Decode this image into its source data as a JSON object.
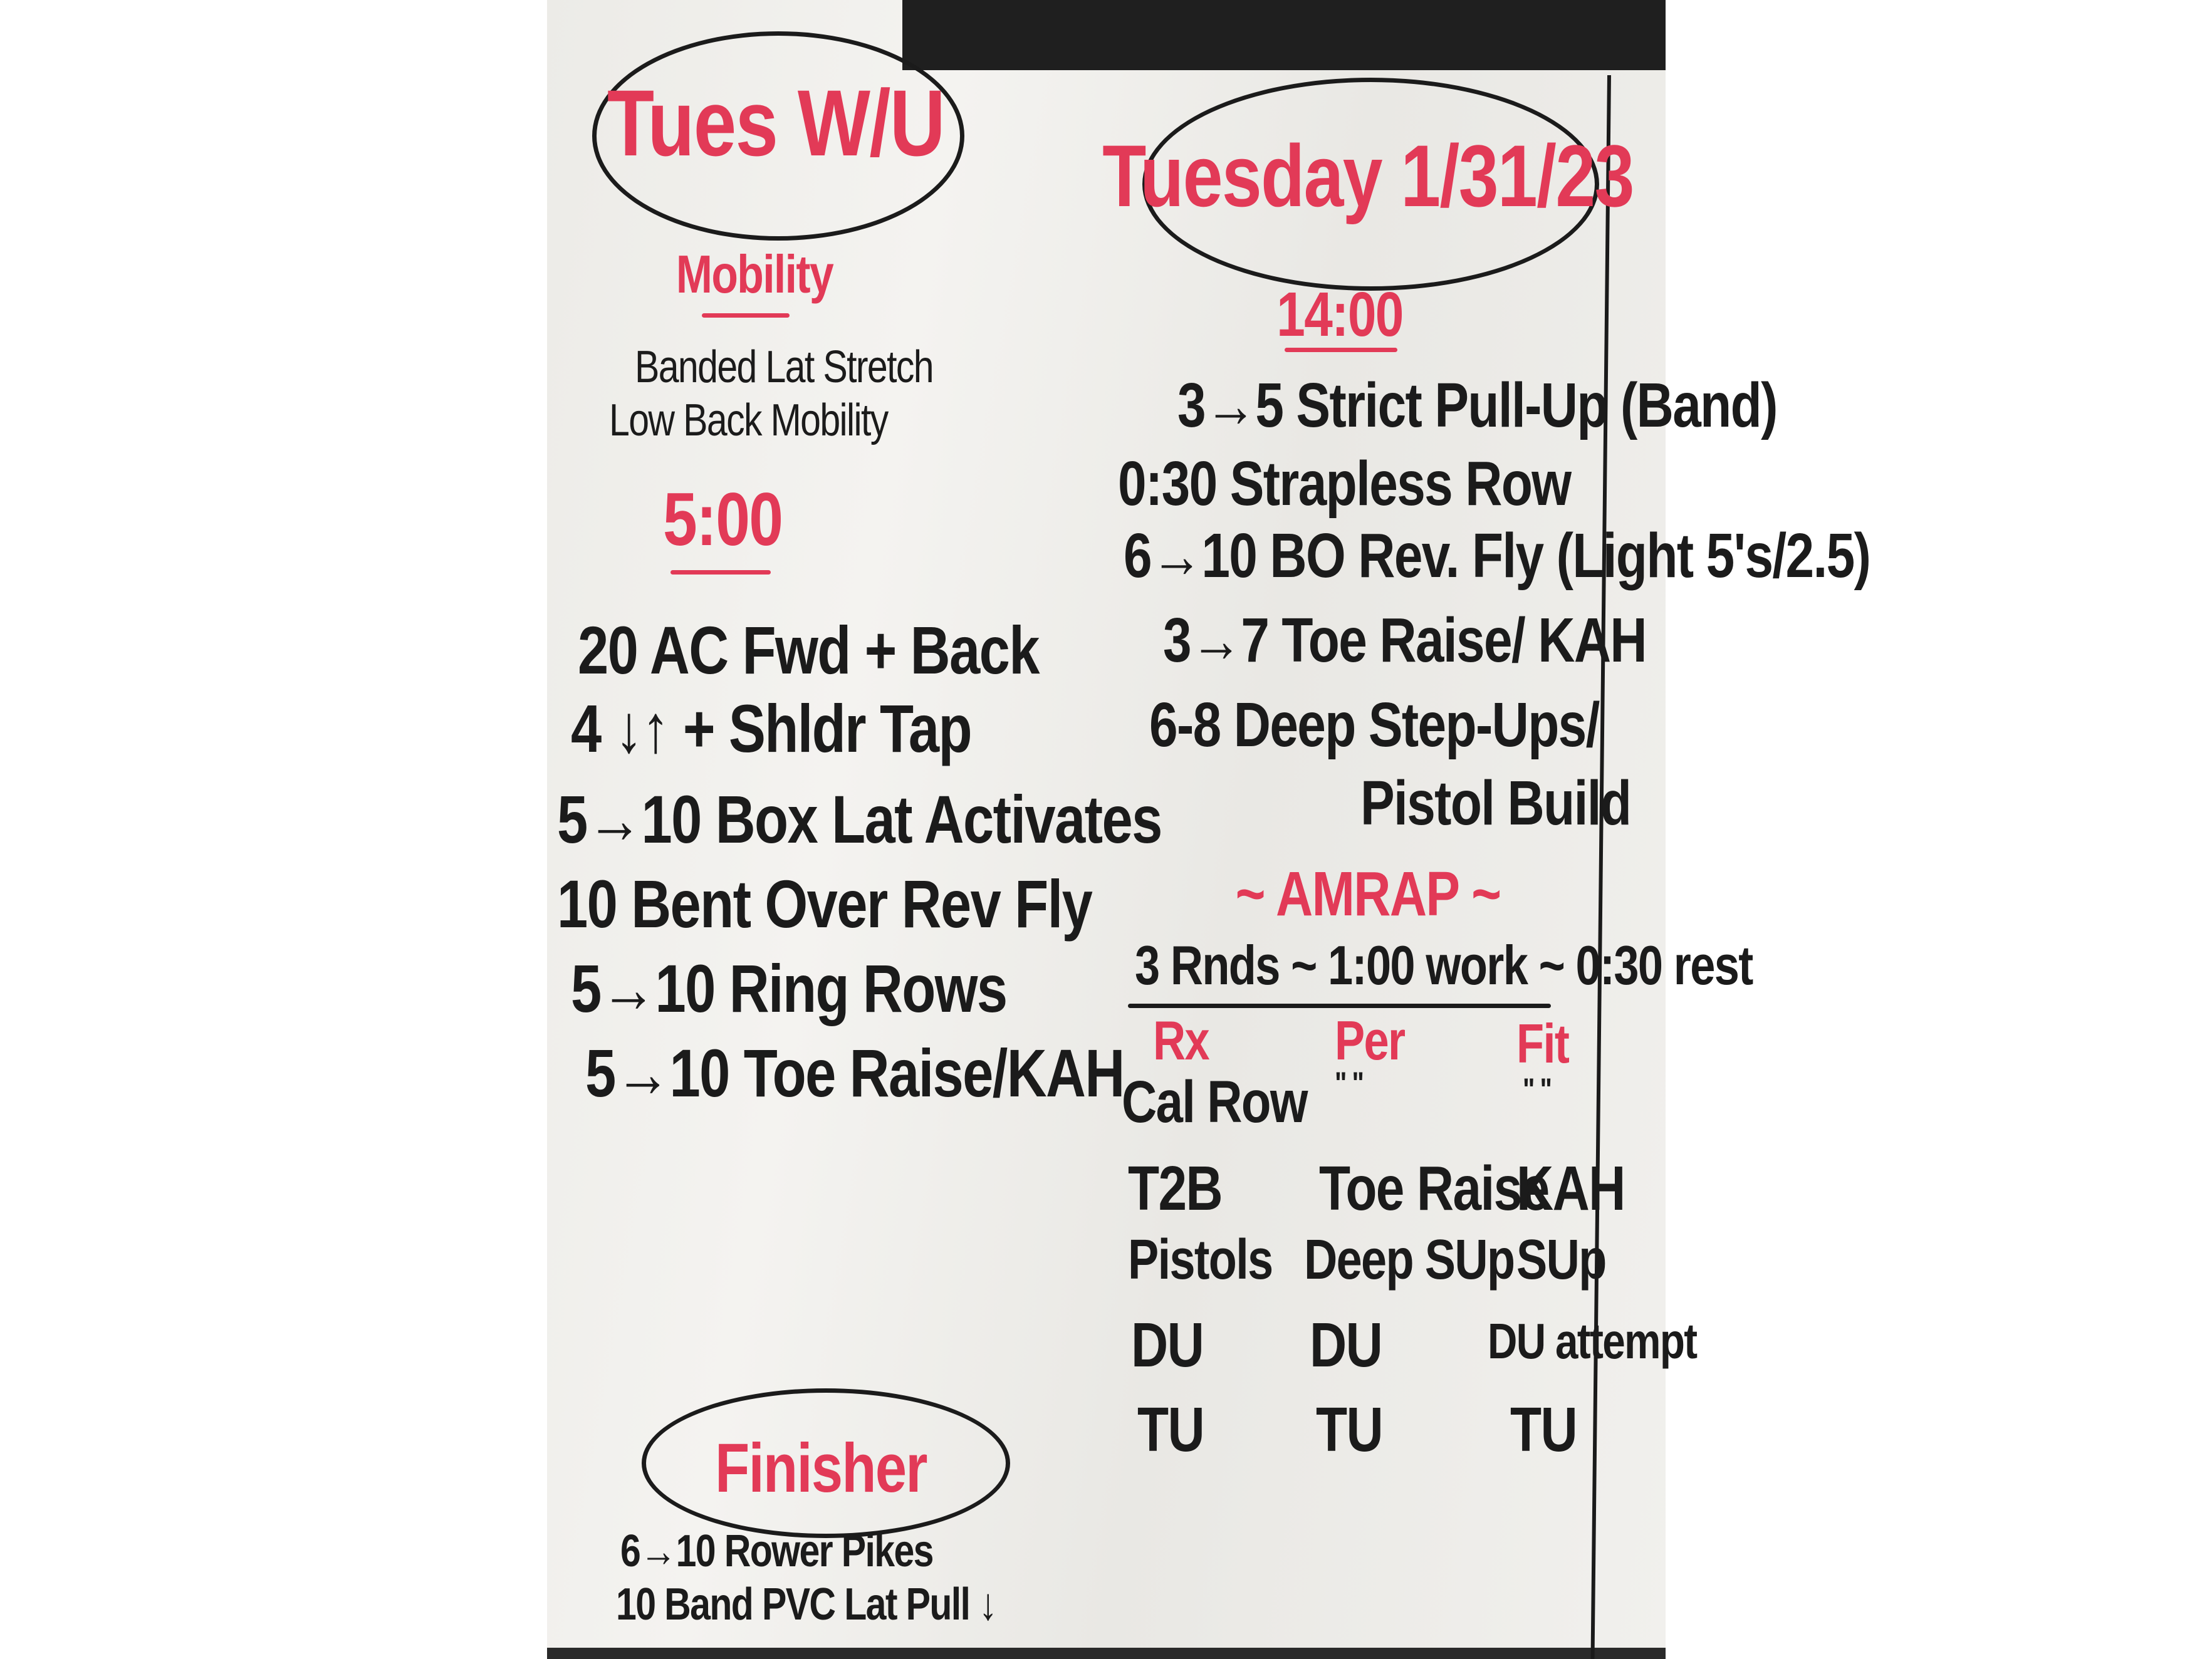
{
  "warmup": {
    "title": "Tues W/U",
    "mobility_heading": "Mobility",
    "mobility_items": [
      "Banded Lat Stretch",
      "Low Back Mobility"
    ],
    "time": "5:00",
    "items": [
      "20 AC Fwd + Back",
      "4 ↓↑ + Shldr Tap",
      "5→10 Box Lat Activates",
      "10 Bent Over Rev Fly",
      "5→10 Ring Rows",
      "5→10 Toe Raise/KAH"
    ]
  },
  "finisher": {
    "title": "Finisher",
    "items": [
      "6→10 Rower Pikes",
      "10 Band PVC Lat Pull ↓"
    ]
  },
  "workout": {
    "title": "Tuesday 1/31/23",
    "time": "14:00",
    "items": [
      "3→5 Strict Pull-Up (Band)",
      "0:30 Strapless Row",
      "6→10 BO Rev. Fly (Light 5's/2.5)",
      "3→7 Toe Raise/ KAH",
      "6-8 Deep Step-Ups/",
      "Pistol Build"
    ],
    "amrap_heading": "~ AMRAP ~",
    "amrap_scheme": "3 Rnds ~ 1:00 work ~ 0:30 rest",
    "columns": [
      "Rx",
      "Per",
      "Fit"
    ],
    "rows": [
      [
        "Cal Row",
        "\" \"",
        "\" \""
      ],
      [
        "T2B",
        "Toe Raise",
        "KAH"
      ],
      [
        "Pistols",
        "Deep SUp",
        "SUp"
      ],
      [
        "DU",
        "DU",
        "DU attempt"
      ],
      [
        "TU",
        "TU",
        "TU"
      ]
    ]
  },
  "colors": {
    "red_marker": "#e23a57",
    "black_marker": "#1b1b1b",
    "board": "#efeeea"
  }
}
